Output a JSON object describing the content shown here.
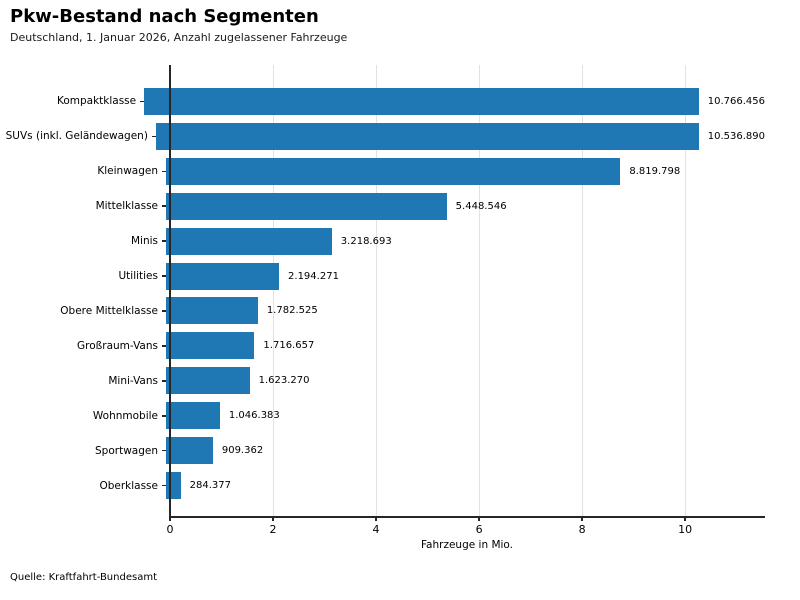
{
  "header": {
    "title": "Pkw-Bestand nach Segmenten",
    "subtitle": "Deutschland, 1. Januar 2026, Anzahl zugelassener Fahrzeuge"
  },
  "footer": {
    "source": "Quelle: Kraftfahrt-Bundesamt"
  },
  "chart_data": {
    "type": "bar",
    "orientation": "horizontal",
    "title": "Pkw-Bestand nach Segmenten",
    "subtitle": "Deutschland, 1. Januar 2026, Anzahl zugelassener Fahrzeuge",
    "categories": [
      "Kompaktklasse",
      "SUVs (inkl. Geländewagen)",
      "Kleinwagen",
      "Mittelklasse",
      "Minis",
      "Utilities",
      "Obere Mittelklasse",
      "Großraum-Vans",
      "Mini-Vans",
      "Wohnmobile",
      "Sportwagen",
      "Oberklasse"
    ],
    "values": [
      10766456,
      10536890,
      8819798,
      5448546,
      3218693,
      2194271,
      1782525,
      1716657,
      1623270,
      1046383,
      909362,
      284377
    ],
    "value_labels": [
      "10.766.456",
      "10.536.890",
      "8.819.798",
      "5.448.546",
      "3.218.693",
      "2.194.271",
      "1.782.525",
      "1.716.657",
      "1.623.270",
      "1.046.383",
      "909.362",
      "284.377"
    ],
    "xlabel": "Fahrzeuge in Mio.",
    "x_ticks": [
      0,
      2,
      4,
      6,
      8,
      10
    ],
    "xlim": [
      0,
      11.55
    ],
    "unit_divisor": 1000000,
    "bar_color": "#1f77b4",
    "grid": true,
    "grid_color": "#e2e2e2",
    "spine_color": "#262626",
    "legend": "none",
    "source": "Quelle: Kraftfahrt-Bundesamt"
  }
}
